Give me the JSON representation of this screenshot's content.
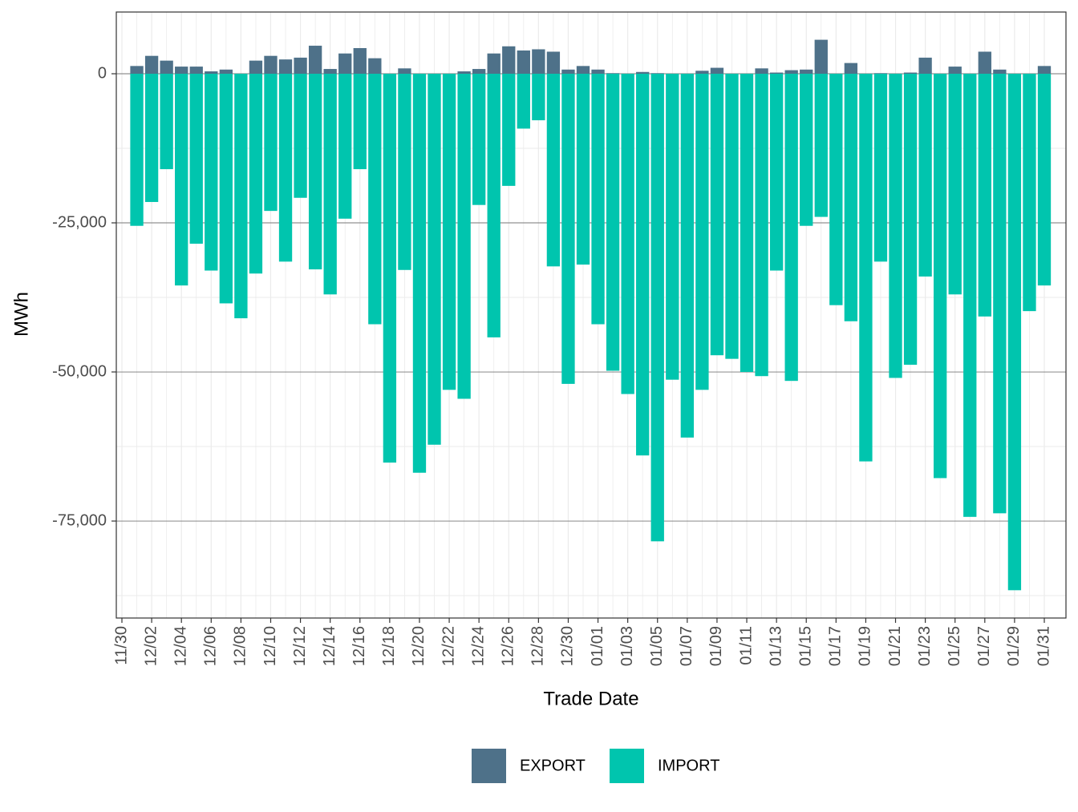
{
  "chart_data": {
    "type": "bar",
    "stacked": false,
    "xlabel": "Trade Date",
    "ylabel": "MWh",
    "categories": [
      "11/30",
      null,
      "12/02",
      null,
      "12/04",
      null,
      "12/06",
      null,
      "12/08",
      null,
      "12/10",
      null,
      "12/12",
      null,
      "12/14",
      null,
      "12/16",
      null,
      "12/18",
      null,
      "12/20",
      null,
      "12/22",
      null,
      "12/24",
      null,
      "12/26",
      null,
      "12/28",
      null,
      "12/30",
      null,
      "01/01",
      null,
      "01/03",
      null,
      "01/05",
      null,
      "01/07",
      null,
      "01/09",
      null,
      "01/11",
      null,
      "01/13",
      null,
      "01/15",
      null,
      "01/17",
      null,
      "01/19",
      null,
      "01/21",
      null,
      "01/23",
      null,
      "01/25",
      null,
      "01/27",
      null,
      "01/29",
      null,
      "01/31"
    ],
    "series": [
      {
        "name": "EXPORT",
        "color": "#4e7189",
        "values": [
          null,
          1300,
          3000,
          2200,
          1200,
          1200,
          400,
          700,
          0,
          2200,
          3000,
          2400,
          2700,
          4700,
          800,
          3400,
          4300,
          2600,
          0,
          900,
          0,
          0,
          0,
          400,
          800,
          3400,
          4600,
          3900,
          4100,
          3700,
          700,
          1300,
          700,
          100,
          0,
          300,
          100,
          0,
          0,
          500,
          1000,
          0,
          0,
          900,
          200,
          600,
          700,
          5700,
          0,
          1800,
          0,
          100,
          0,
          200,
          2700,
          0,
          1200,
          0,
          3700,
          700,
          0,
          0,
          1300
        ]
      },
      {
        "name": "IMPORT",
        "color": "#00c5ae",
        "values": [
          null,
          -25500,
          -21500,
          -16000,
          -35500,
          -28500,
          -33000,
          -38500,
          -41000,
          -33500,
          -23000,
          -31500,
          -20800,
          -32800,
          -37000,
          -24300,
          -16000,
          -42000,
          -65200,
          -32900,
          -66900,
          -62200,
          -53000,
          -54500,
          -22000,
          -44200,
          -18800,
          -9200,
          -7800,
          -32300,
          -52000,
          -32000,
          -42000,
          -49800,
          -53700,
          -64000,
          -78400,
          -51300,
          -61000,
          -53000,
          -47200,
          -47800,
          -50000,
          -50700,
          -33000,
          -51500,
          -25500,
          -24000,
          -38800,
          -41500,
          -65000,
          -31500,
          -51000,
          -48800,
          -34000,
          -67800,
          -37000,
          -74300,
          -40700,
          -73700,
          -86600,
          -39800,
          -35500
        ]
      }
    ],
    "ylim": [
      -91260,
      10350
    ],
    "yticks": [
      {
        "value": -75000,
        "label": "-75,000"
      },
      {
        "value": -50000,
        "label": "-50,000"
      },
      {
        "value": -25000,
        "label": "-25,000"
      },
      0
    ],
    "minor_yticks": [
      -87500,
      -62500,
      -37500,
      -12500
    ],
    "grid": true,
    "legend": "bottom"
  }
}
